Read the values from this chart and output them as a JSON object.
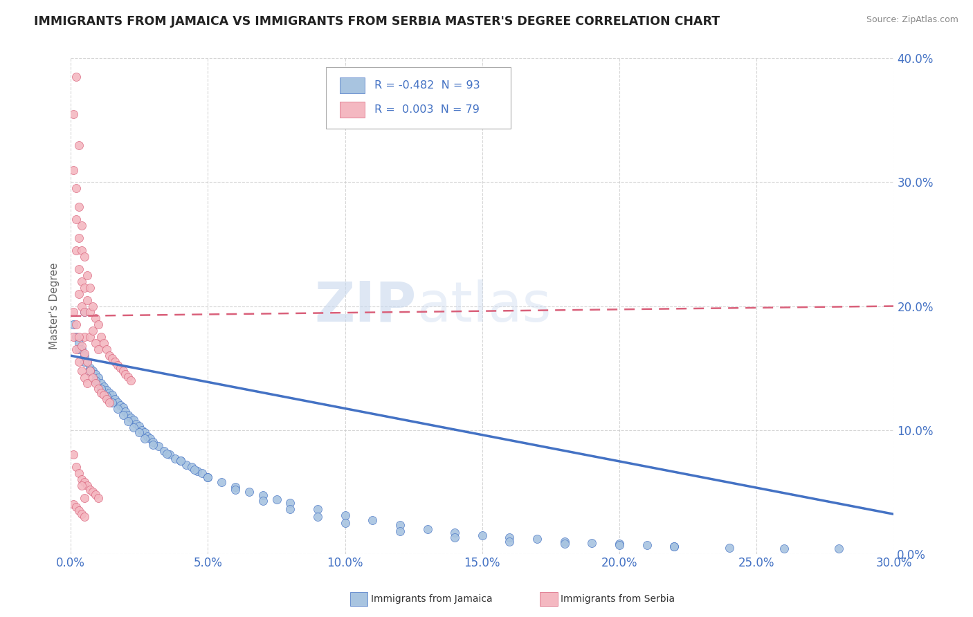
{
  "title": "IMMIGRANTS FROM JAMAICA VS IMMIGRANTS FROM SERBIA MASTER'S DEGREE CORRELATION CHART",
  "source_text": "Source: ZipAtlas.com",
  "ylabel_label": "Master's Degree",
  "legend_label1": "Immigrants from Jamaica",
  "legend_label2": "Immigrants from Serbia",
  "legend_r1": "R = -0.482",
  "legend_n1": "N = 93",
  "legend_r2": "R =  0.003",
  "legend_n2": "N = 79",
  "watermark_zip": "ZIP",
  "watermark_atlas": "atlas",
  "xmin": 0.0,
  "xmax": 0.3,
  "ymin": 0.0,
  "ymax": 0.4,
  "color_jamaica": "#a8c4e0",
  "color_serbia": "#f4b8c1",
  "color_jamaica_line": "#4472c4",
  "color_serbia_line": "#d9607a",
  "color_axis": "#4472c4",
  "color_title": "#222222",
  "jamaica_x": [
    0.001,
    0.002,
    0.003,
    0.004,
    0.005,
    0.006,
    0.007,
    0.008,
    0.009,
    0.01,
    0.011,
    0.012,
    0.013,
    0.014,
    0.015,
    0.016,
    0.017,
    0.018,
    0.019,
    0.02,
    0.021,
    0.022,
    0.023,
    0.024,
    0.025,
    0.026,
    0.027,
    0.028,
    0.029,
    0.03,
    0.032,
    0.034,
    0.036,
    0.038,
    0.04,
    0.042,
    0.044,
    0.046,
    0.048,
    0.05,
    0.055,
    0.06,
    0.065,
    0.07,
    0.075,
    0.08,
    0.09,
    0.1,
    0.11,
    0.12,
    0.13,
    0.14,
    0.15,
    0.16,
    0.17,
    0.18,
    0.19,
    0.2,
    0.21,
    0.22,
    0.003,
    0.005,
    0.007,
    0.009,
    0.011,
    0.013,
    0.015,
    0.017,
    0.019,
    0.021,
    0.023,
    0.025,
    0.027,
    0.03,
    0.035,
    0.04,
    0.045,
    0.05,
    0.06,
    0.07,
    0.08,
    0.09,
    0.1,
    0.12,
    0.14,
    0.16,
    0.18,
    0.2,
    0.22,
    0.24,
    0.26,
    0.28,
    0.005
  ],
  "jamaica_y": [
    0.185,
    0.175,
    0.17,
    0.165,
    0.16,
    0.155,
    0.15,
    0.148,
    0.145,
    0.142,
    0.138,
    0.135,
    0.132,
    0.13,
    0.128,
    0.125,
    0.122,
    0.12,
    0.118,
    0.115,
    0.112,
    0.11,
    0.108,
    0.105,
    0.103,
    0.1,
    0.098,
    0.095,
    0.093,
    0.09,
    0.087,
    0.083,
    0.08,
    0.077,
    0.075,
    0.072,
    0.07,
    0.067,
    0.065,
    0.062,
    0.058,
    0.054,
    0.05,
    0.047,
    0.044,
    0.041,
    0.036,
    0.031,
    0.027,
    0.023,
    0.02,
    0.017,
    0.015,
    0.013,
    0.012,
    0.01,
    0.009,
    0.008,
    0.007,
    0.006,
    0.165,
    0.155,
    0.148,
    0.14,
    0.133,
    0.127,
    0.122,
    0.117,
    0.112,
    0.107,
    0.102,
    0.098,
    0.093,
    0.088,
    0.081,
    0.075,
    0.068,
    0.062,
    0.052,
    0.043,
    0.036,
    0.03,
    0.025,
    0.018,
    0.013,
    0.01,
    0.008,
    0.007,
    0.006,
    0.005,
    0.004,
    0.004,
    0.195
  ],
  "serbia_x": [
    0.001,
    0.001,
    0.002,
    0.002,
    0.002,
    0.003,
    0.003,
    0.003,
    0.003,
    0.004,
    0.004,
    0.004,
    0.004,
    0.005,
    0.005,
    0.005,
    0.005,
    0.006,
    0.006,
    0.007,
    0.007,
    0.007,
    0.008,
    0.008,
    0.009,
    0.009,
    0.01,
    0.01,
    0.011,
    0.012,
    0.013,
    0.014,
    0.015,
    0.016,
    0.017,
    0.018,
    0.019,
    0.02,
    0.021,
    0.022,
    0.001,
    0.001,
    0.002,
    0.002,
    0.003,
    0.003,
    0.004,
    0.004,
    0.005,
    0.005,
    0.006,
    0.006,
    0.007,
    0.008,
    0.009,
    0.01,
    0.011,
    0.012,
    0.013,
    0.014,
    0.001,
    0.002,
    0.003,
    0.004,
    0.005,
    0.006,
    0.007,
    0.008,
    0.009,
    0.01,
    0.002,
    0.003,
    0.004,
    0.005,
    0.001,
    0.002,
    0.003,
    0.004,
    0.005
  ],
  "serbia_y": [
    0.355,
    0.31,
    0.295,
    0.27,
    0.245,
    0.28,
    0.255,
    0.23,
    0.21,
    0.265,
    0.245,
    0.22,
    0.2,
    0.24,
    0.215,
    0.195,
    0.175,
    0.225,
    0.205,
    0.215,
    0.195,
    0.175,
    0.2,
    0.18,
    0.19,
    0.17,
    0.185,
    0.165,
    0.175,
    0.17,
    0.165,
    0.16,
    0.158,
    0.155,
    0.152,
    0.15,
    0.148,
    0.145,
    0.143,
    0.14,
    0.195,
    0.175,
    0.185,
    0.165,
    0.175,
    0.155,
    0.168,
    0.148,
    0.162,
    0.142,
    0.155,
    0.138,
    0.148,
    0.142,
    0.138,
    0.133,
    0.13,
    0.128,
    0.125,
    0.122,
    0.08,
    0.07,
    0.065,
    0.06,
    0.058,
    0.055,
    0.052,
    0.05,
    0.048,
    0.045,
    0.385,
    0.33,
    0.055,
    0.045,
    0.04,
    0.038,
    0.035,
    0.032,
    0.03
  ],
  "jamaica_trendline": [
    0.16,
    0.032
  ],
  "serbia_trendline": [
    0.192,
    0.2
  ],
  "xticks": [
    0.0,
    0.05,
    0.1,
    0.15,
    0.2,
    0.25,
    0.3
  ],
  "yticks": [
    0.0,
    0.1,
    0.2,
    0.3,
    0.4
  ]
}
